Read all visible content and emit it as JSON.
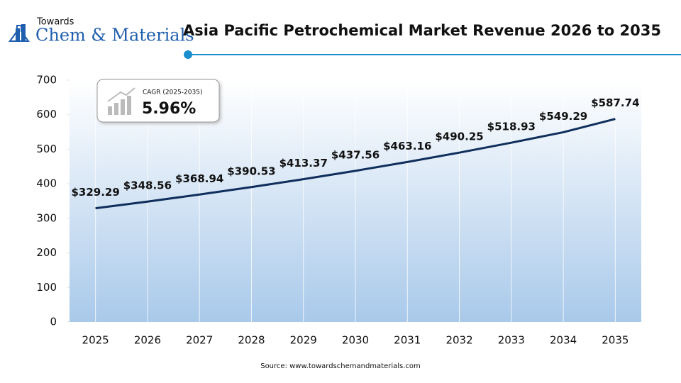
{
  "logo": {
    "top": "Towards",
    "main": "Chem & Materials"
  },
  "chart_data": {
    "type": "line",
    "title": "Asia Pacific Petrochemical Market Revenue 2026 to 2035",
    "categories": [
      "2025",
      "2026",
      "2027",
      "2028",
      "2029",
      "2030",
      "2031",
      "2032",
      "2033",
      "2034",
      "2035"
    ],
    "values": [
      329.29,
      348.56,
      368.94,
      390.53,
      413.37,
      437.56,
      463.16,
      490.25,
      518.93,
      549.29,
      587.74
    ],
    "value_labels": [
      "$329.29",
      "$348.56",
      "$368.94",
      "$390.53",
      "$413.37",
      "$437.56",
      "$463.16",
      "$490.25",
      "$518.93",
      "$549.29",
      "$587.74"
    ],
    "color": "#0f2e5c",
    "ylim": [
      0,
      700
    ],
    "yticks": [
      0,
      100,
      200,
      300,
      400,
      500,
      600,
      700
    ],
    "annotation": {
      "label": "CAGR (2025-2035)",
      "value": "5.96%"
    },
    "source": "Source: www.towardschemandmaterials.com"
  }
}
